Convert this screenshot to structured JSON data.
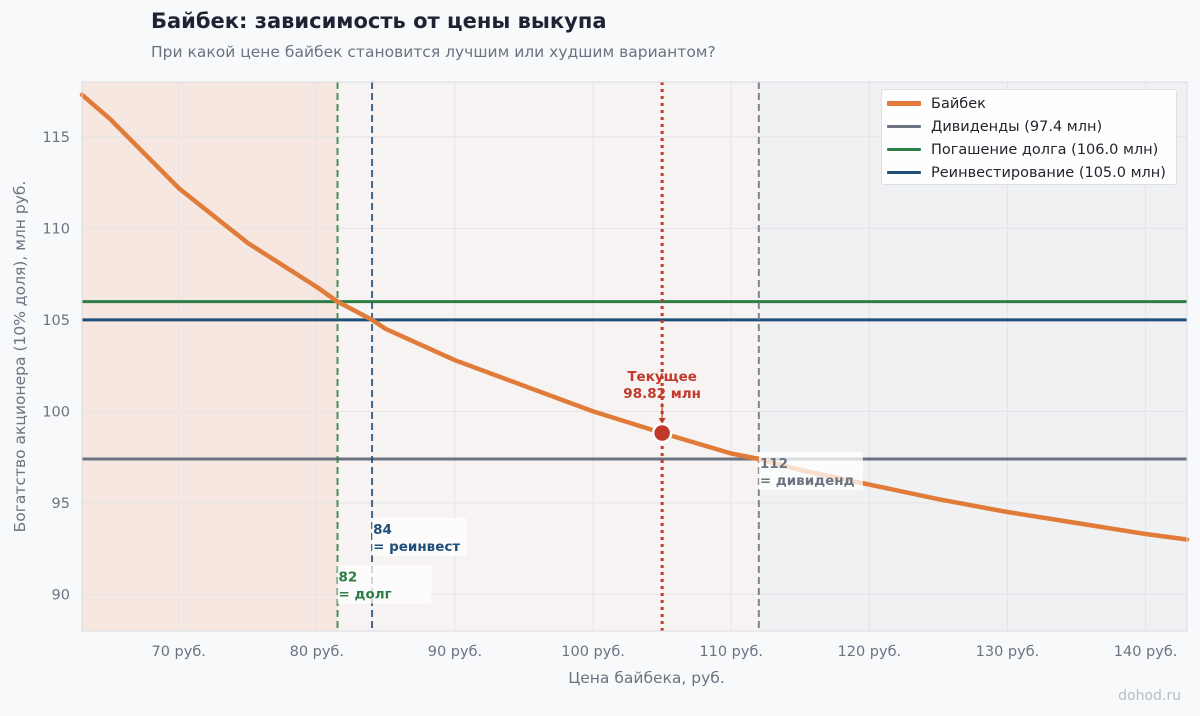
{
  "title": "Байбек: зависимость от цены выкупа",
  "subtitle": "При какой цене байбек становится лучшим или худшим вариантом?",
  "watermark": "dohod.ru",
  "chart_data": {
    "type": "line",
    "xlabel": "Цена байбека, руб.",
    "ylabel": "Богатство акционера (10% доля), млн руб.",
    "xlim": [
      63,
      143
    ],
    "ylim": [
      88,
      118
    ],
    "x_ticks": [
      70,
      80,
      90,
      100,
      110,
      120,
      130,
      140
    ],
    "x_tick_labels": [
      "70 руб.",
      "80 руб.",
      "90 руб.",
      "100 руб.",
      "110 руб.",
      "120 руб.",
      "130 руб.",
      "140 руб."
    ],
    "y_ticks": [
      90,
      95,
      100,
      105,
      110,
      115
    ],
    "grid": true,
    "legend_position": "top-right",
    "series": [
      {
        "name": "Байбек",
        "color": "#e07b39",
        "x": [
          63,
          65,
          70,
          75,
          80,
          81.5,
          84,
          85,
          90,
          95,
          100,
          105,
          110,
          112,
          115,
          120,
          125,
          130,
          135,
          140,
          143
        ],
        "y": [
          117.3,
          116.0,
          112.2,
          109.2,
          106.8,
          106.0,
          105.0,
          104.5,
          102.8,
          101.4,
          100.0,
          98.82,
          97.7,
          97.4,
          96.8,
          96.0,
          95.2,
          94.5,
          93.9,
          93.3,
          93.0
        ]
      },
      {
        "name": "Дивиденды (97.4 млн)",
        "color": "#6b7280",
        "y_const": 97.4
      },
      {
        "name": "Погашение долга (106.0 млн)",
        "color": "#2e7d46",
        "y_const": 106.0
      },
      {
        "name": "Реинвестирование (105.0 млн)",
        "color": "#1f4e79",
        "y_const": 105.0
      }
    ],
    "regions": [
      {
        "from": 63,
        "to": 81.5,
        "color": "#f6e8e0"
      },
      {
        "from": 81.5,
        "to": 112,
        "color": "#f7f3f2"
      },
      {
        "from": 112,
        "to": 143,
        "color": "#f0f1f3"
      }
    ],
    "vlines": [
      {
        "x": 81.5,
        "color": "#2e7d46",
        "label_line1": "82",
        "label_line2": "= долг",
        "label_y": 90.7
      },
      {
        "x": 84,
        "color": "#1f4e79",
        "label_line1": "84",
        "label_line2": "= реинвест",
        "label_y": 93.3
      },
      {
        "x": 112,
        "color": "#6b7280",
        "label_line1": "112",
        "label_line2": "= дивиденд",
        "label_y": 96.9
      }
    ],
    "current": {
      "x": 105,
      "y": 98.82,
      "color": "#c0392b",
      "label_line1": "Текущее",
      "label_line2": "98.82 млн"
    }
  }
}
